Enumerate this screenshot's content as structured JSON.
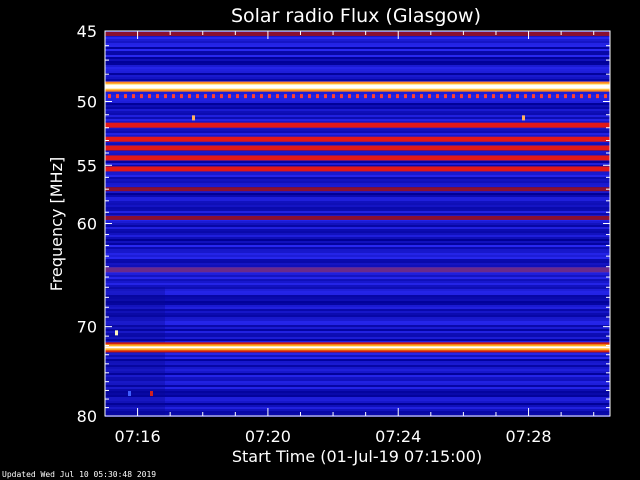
{
  "chart_data": {
    "type": "heatmap",
    "title": "Solar radio Flux (Glasgow)",
    "xlabel": "Start Time (01-Jul-19 07:15:00)",
    "ylabel": "Frequency [MHz]",
    "x_unit": "time (HH:MM)",
    "xlim": [
      "07:15:00",
      "07:30:30"
    ],
    "ylim": [
      45,
      80
    ],
    "y_scale": "log",
    "grid": false,
    "x_ticks": [
      "07:16",
      "07:20",
      "07:24",
      "07:28"
    ],
    "y_ticks": [
      45,
      50,
      55,
      60,
      70,
      80
    ],
    "colormap": "black-blue-red-yellow-white",
    "background_level": "blue",
    "bands": [
      {
        "freq_mhz": 45.2,
        "level": "dark-red"
      },
      {
        "freq_mhz": 48.9,
        "level": "white"
      },
      {
        "freq_mhz": 49.6,
        "level": "red-dotted"
      },
      {
        "freq_mhz": 51.8,
        "level": "red"
      },
      {
        "freq_mhz": 52.9,
        "level": "red"
      },
      {
        "freq_mhz": 53.6,
        "level": "red"
      },
      {
        "freq_mhz": 54.4,
        "level": "red"
      },
      {
        "freq_mhz": 55.3,
        "level": "red"
      },
      {
        "freq_mhz": 57.0,
        "level": "dark-red"
      },
      {
        "freq_mhz": 59.5,
        "level": "dark-red"
      },
      {
        "freq_mhz": 64.3,
        "level": "purple"
      },
      {
        "freq_mhz": 72.2,
        "level": "yellow-white"
      }
    ]
  },
  "footer": "Updated Wed Jul 10 05:30:48 2019"
}
